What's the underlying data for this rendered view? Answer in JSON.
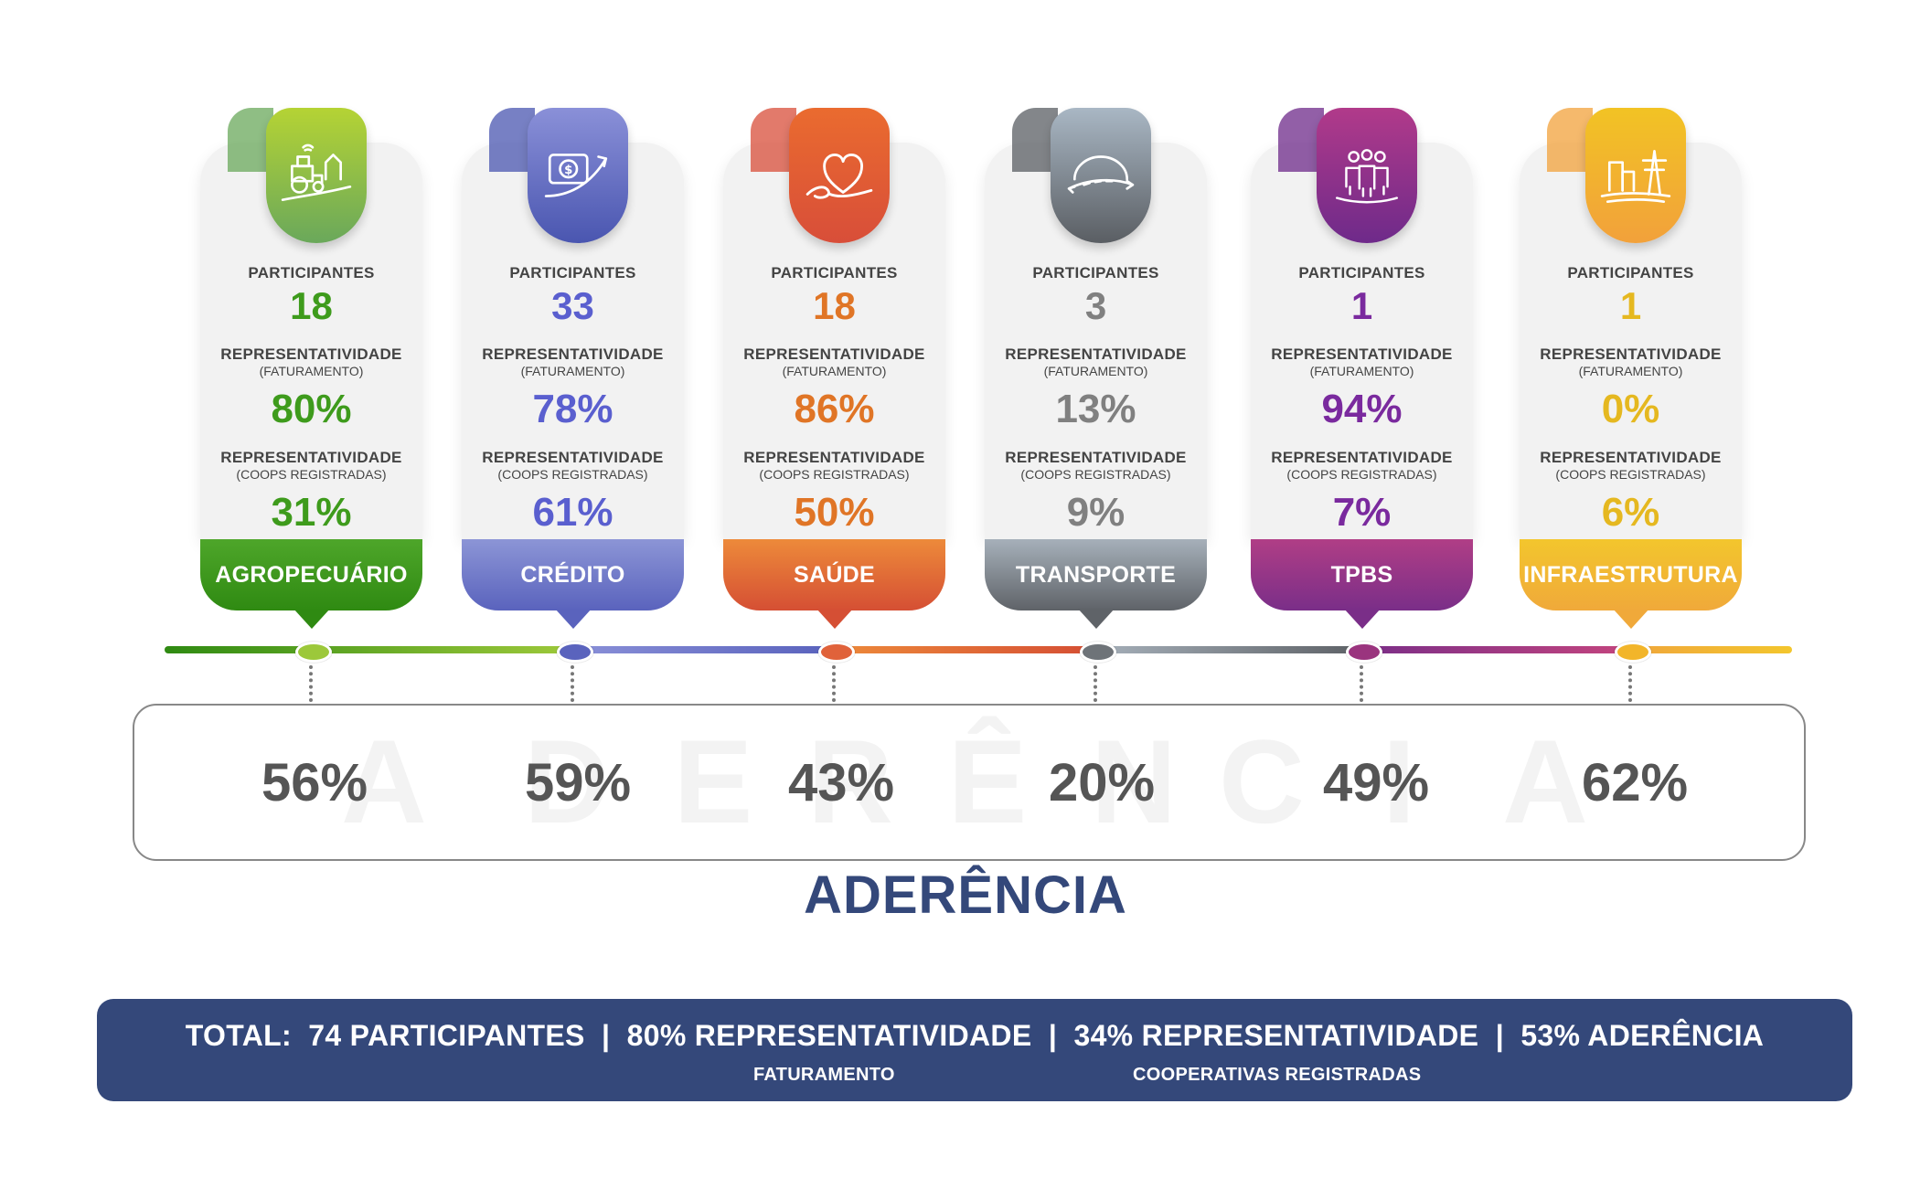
{
  "labels": {
    "participants": "PARTICIPANTES",
    "representativity": "REPRESENTATIVIDADE",
    "billing_sub": "(FATURAMENTO)",
    "coops_sub": "(COOPS REGISTRADAS)"
  },
  "sectors": [
    {
      "name": "AGROPECUÁRIO",
      "participants": "18",
      "rep_billing": "80%",
      "rep_coops": "31%",
      "adherence": "56%",
      "icon": "tractor-icon",
      "color": "#3e9b1c",
      "badge_top": "#b5d334",
      "badge_bottom": "#6aa85b",
      "band_top": "#4ea62a",
      "band_bottom": "#2f8a12"
    },
    {
      "name": "CRÉDITO",
      "participants": "33",
      "rep_billing": "78%",
      "rep_coops": "61%",
      "adherence": "59%",
      "icon": "money-growth-icon",
      "color": "#5a5fcf",
      "badge_top": "#8a90d8",
      "badge_bottom": "#4a56b0",
      "band_top": "#8c95d6",
      "band_bottom": "#5a63bd"
    },
    {
      "name": "SAÚDE",
      "participants": "18",
      "rep_billing": "86%",
      "rep_coops": "50%",
      "adherence": "43%",
      "icon": "heart-icon",
      "color": "#e07526",
      "badge_top": "#ea6b2f",
      "badge_bottom": "#d84e39",
      "band_top": "#ed8a3a",
      "band_bottom": "#d54f34"
    },
    {
      "name": "TRANSPORTE",
      "participants": "3",
      "rep_billing": "13%",
      "rep_coops": "9%",
      "adherence": "20%",
      "icon": "road-icon",
      "color": "#808080",
      "badge_top": "#a9b7c4",
      "badge_bottom": "#5a5e63",
      "band_top": "#a6b0ba",
      "band_bottom": "#5f6368"
    },
    {
      "name": "TPBS",
      "participants": "1",
      "rep_billing": "94%",
      "rep_coops": "7%",
      "adherence": "49%",
      "icon": "people-group-icon",
      "color": "#7a2a9e",
      "badge_top": "#b13a8a",
      "badge_bottom": "#6e2a8a",
      "band_top": "#b03e86",
      "band_bottom": "#7a2e88"
    },
    {
      "name": "INFRAESTRUTURA",
      "participants": "1",
      "rep_billing": "0%",
      "rep_coops": "6%",
      "adherence": "62%",
      "icon": "power-tower-icon",
      "color": "#e5b820",
      "badge_top": "#f2c324",
      "badge_bottom": "#f2a13b",
      "band_top": "#f3c62d",
      "band_bottom": "#f0a93a"
    }
  ],
  "adherence_background_letters": [
    "A",
    "D",
    "E",
    "R",
    "Ê",
    "N",
    "C",
    "I",
    "A"
  ],
  "adherence_title": "ADERÊNCIA",
  "total": {
    "line": "TOTAL:  74 PARTICIPANTES  |  80% REPRESENTATIVIDADE  |  34% REPRESENTATIVIDADE  |  53% ADERÊNCIA",
    "sub_billing": "FATURAMENTO",
    "sub_coops": "COOPERATIVAS REGISTRADAS"
  }
}
